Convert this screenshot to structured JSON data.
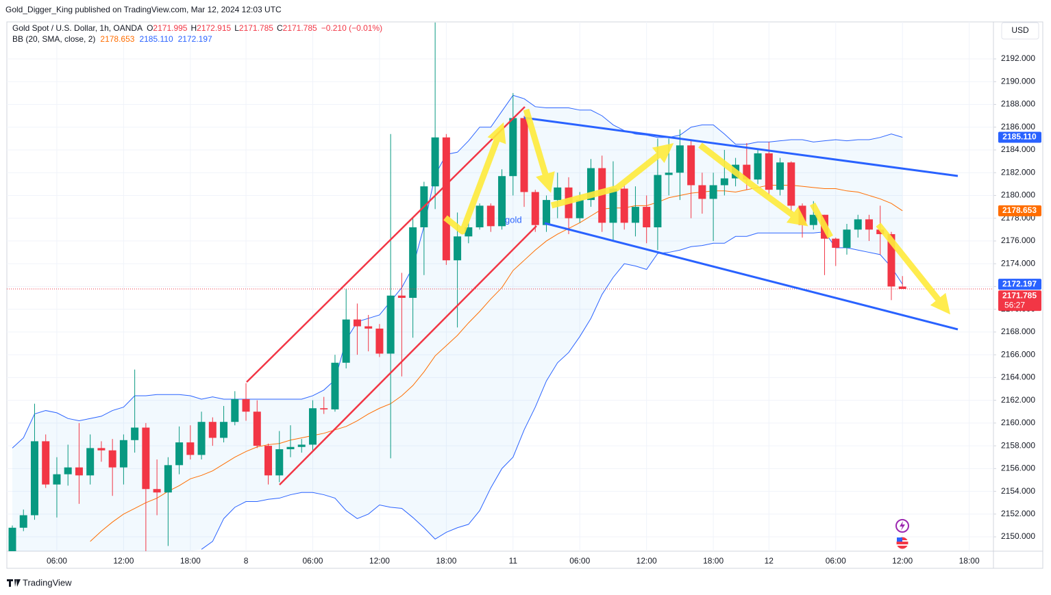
{
  "header": "Gold_Digger_King published on TradingView.com, Mar 12, 2024 12:03 UTC",
  "footer": "TradingView",
  "chart_data": {
    "type": "candlestick",
    "legend": {
      "symbol": "Gold Spot / U.S. Dollar, 1h, OANDA",
      "ohlc": [
        {
          "label": "O",
          "value": "2171.995"
        },
        {
          "label": "H",
          "value": "2172.915"
        },
        {
          "label": "L",
          "value": "2171.785"
        },
        {
          "label": "C",
          "value": "2171.785"
        }
      ],
      "change": "−0.210 (−0.01%)",
      "indicator": "BB (20, SMA, close, 2)",
      "indicator_values": [
        "2178.653",
        "2185.110",
        "2172.197"
      ]
    },
    "currency": "USD",
    "annotation": "gold",
    "up_color": "#089981",
    "down_color": "#f23645",
    "categories": [
      null,
      null,
      null,
      null,
      "06:00",
      null,
      null,
      null,
      null,
      null,
      "12:00",
      null,
      null,
      null,
      null,
      null,
      "18:00",
      null,
      null,
      null,
      null,
      "8",
      null,
      null,
      null,
      null,
      null,
      "06:00",
      null,
      null,
      null,
      null,
      null,
      "12:00",
      null,
      null,
      null,
      null,
      null,
      "18:00",
      null,
      null,
      null,
      null,
      null,
      "11",
      null,
      null,
      null,
      null,
      null,
      "06:00",
      null,
      null,
      null,
      null,
      null,
      "12:00",
      null,
      null,
      null,
      null,
      null,
      "18:00",
      null,
      null,
      null,
      null,
      "12",
      null,
      null,
      null,
      null,
      null,
      "06:00",
      null,
      null,
      null,
      null,
      null,
      "12:00",
      null,
      null,
      null,
      null,
      null,
      "18:00"
    ],
    "open": [
      2148.6,
      2150.8,
      2151.9,
      2158.4,
      2154.6,
      2155.5,
      2156.1,
      2155.4,
      2157.8,
      2157.6,
      2156.1,
      2158.5,
      2159.6,
      2154.2,
      2153.9,
      2156.3,
      2158.3,
      2157.2,
      2160.1,
      2158.7,
      2160.1,
      2162.1,
      2161.0,
      2158.0,
      2155.4,
      2157.7,
      2157.9,
      2158.1,
      2161.3,
      2161.2,
      2165.3,
      2169.1,
      2168.5,
      2168.3,
      2166.1,
      2171.2,
      2171.0,
      2177.2,
      2180.8,
      2185.1,
      2174.3,
      2176.4,
      2177.2,
      2179.1,
      2177.3,
      2181.7,
      2186.8,
      2180.3,
      2177.4,
      2179.6,
      2180.7,
      2178.0,
      2179.6,
      2182.4,
      2177.6,
      2180.6,
      2177.6,
      2179.0,
      2177.2,
      2181.8,
      2182.0,
      2184.4,
      2180.9,
      2179.7,
      2180.9,
      2181.5,
      2182.7,
      2181.4,
      2183.7,
      2180.5,
      2182.9,
      2179.1,
      2177.4,
      2178.3,
      2176.2,
      2175.4,
      2177.0,
      2177.9,
      2177.0,
      2176.6,
      2171.995,
      null,
      null,
      null,
      null,
      null,
      null
    ],
    "high": [
      2151.0,
      2152.4,
      2161.7,
      2159.0,
      2157.0,
      2158.1,
      2160.0,
      2159.0,
      2158.4,
      2158.6,
      2159.0,
      2164.7,
      2160.0,
      2156.8,
      2157.0,
      2159.7,
      2159.8,
      2161.0,
      2160.5,
      2161.5,
      2162.8,
      2163.5,
      2162.0,
      2158.2,
      2159.3,
      2159.8,
      2158.6,
      2162.0,
      2162.3,
      2166.0,
      2171.8,
      2170.5,
      2169.5,
      2168.7,
      2185.4,
      2173.2,
      2178.0,
      2181.2,
      2195.2,
      2185.4,
      2178.5,
      2177.6,
      2179.3,
      2179.3,
      2182.3,
      2189.0,
      2187.0,
      2180.5,
      2180.0,
      2182.0,
      2181.6,
      2180.3,
      2183.2,
      2183.5,
      2183.0,
      2181.0,
      2180.8,
      2180.0,
      2185.0,
      2185.0,
      2185.8,
      2184.8,
      2182.0,
      2182.0,
      2184.0,
      2183.3,
      2184.6,
      2184.0,
      2184.7,
      2183.3,
      2183.0,
      2179.3,
      2179.5,
      2178.3,
      2176.3,
      2177.5,
      2178.3,
      2178.3,
      2179.1,
      2176.8,
      2172.915,
      null,
      null,
      null,
      null,
      null,
      null
    ],
    "low": [
      2148.3,
      2150.5,
      2151.5,
      2154.3,
      2151.7,
      2154.5,
      2152.9,
      2154.6,
      2156.6,
      2153.6,
      2154.6,
      2157.4,
      2148.7,
      2151.9,
      2149.2,
      2155.5,
      2156.8,
      2156.8,
      2158.0,
      2158.3,
      2159.8,
      2160.2,
      2157.8,
      2154.6,
      2154.8,
      2157.0,
      2157.4,
      2157.6,
      2160.8,
      2161.0,
      2164.8,
      2166.0,
      2166.3,
      2165.8,
      2156.9,
      2164.1,
      2167.5,
      2173.0,
      2178.8,
      2173.9,
      2168.4,
      2175.8,
      2177.0,
      2176.8,
      2177.0,
      2180.0,
      2179.0,
      2176.8,
      2176.8,
      2178.0,
      2176.6,
      2177.6,
      2179.0,
      2176.8,
      2176.0,
      2177.0,
      2176.4,
      2175.8,
      2175.2,
      2180.0,
      2179.6,
      2178.0,
      2178.4,
      2176.0,
      2180.0,
      2180.8,
      2180.5,
      2181.0,
      2180.0,
      2180.0,
      2178.6,
      2176.3,
      2177.0,
      2173.0,
      2173.8,
      2174.8,
      2176.3,
      2176.0,
      2174.8,
      2170.8,
      2171.785,
      null,
      null,
      null,
      null,
      null,
      null
    ],
    "close": [
      2150.8,
      2151.9,
      2158.4,
      2154.6,
      2155.5,
      2156.1,
      2155.4,
      2157.8,
      2157.6,
      2156.1,
      2158.5,
      2159.6,
      2154.2,
      2153.9,
      2156.3,
      2158.3,
      2157.2,
      2160.1,
      2158.7,
      2160.1,
      2162.1,
      2161.0,
      2158.0,
      2155.4,
      2157.7,
      2157.9,
      2158.1,
      2161.3,
      2161.2,
      2165.3,
      2169.1,
      2168.5,
      2168.3,
      2166.1,
      2171.2,
      2171.0,
      2177.2,
      2180.8,
      2185.1,
      2174.3,
      2176.4,
      2177.2,
      2179.1,
      2177.3,
      2181.7,
      2186.8,
      2180.3,
      2177.4,
      2179.6,
      2180.7,
      2178.0,
      2179.6,
      2182.4,
      2177.6,
      2180.6,
      2177.6,
      2179.0,
      2177.2,
      2181.8,
      2182.0,
      2184.4,
      2180.9,
      2179.7,
      2180.9,
      2181.5,
      2182.7,
      2181.4,
      2183.7,
      2180.5,
      2182.9,
      2179.1,
      2177.4,
      2178.3,
      2176.2,
      2175.4,
      2177.0,
      2177.9,
      2177.0,
      2176.6,
      2172.0,
      2171.785,
      null,
      null,
      null,
      null,
      null,
      null
    ],
    "series": [
      {
        "name": "Upper",
        "color": "#2962ff",
        "values": [
          2157.8,
          2158.7,
          2160.8,
          2161.1,
          2160.9,
          2160.4,
          2160.2,
          2160.4,
          2160.6,
          2161.1,
          2161.4,
          2162.4,
          2162.4,
          2162.5,
          2162.5,
          2162.5,
          2162.4,
          2162.1,
          2162.3,
          2162.1,
          2162.1,
          2162.1,
          2162.1,
          2162.1,
          2162.1,
          2162.1,
          2162.1,
          2162.4,
          2162.9,
          2163.8,
          2167.3,
          2168.9,
          2169.2,
          2169.5,
          2170.7,
          2171.9,
          2173.7,
          2177.3,
          2181.8,
          2183.6,
          2183.8,
          2184.8,
          2186.0,
          2186.0,
          2187.4,
          2188.8,
          2188.5,
          2187.8,
          2187.7,
          2187.7,
          2187.7,
          2187.5,
          2187.5,
          2187.0,
          2186.2,
          2185.7,
          2185.4,
          2185.3,
          2185.1,
          2185.1,
          2185.3,
          2186.0,
          2186.2,
          2186.2,
          2185.4,
          2184.5,
          2184.5,
          2184.7,
          2184.7,
          2184.8,
          2184.9,
          2184.9,
          2184.7,
          2184.8,
          2184.9,
          2184.8,
          2184.9,
          2184.9,
          2185.1,
          2185.4,
          2185.11,
          null,
          null,
          null,
          null,
          null,
          null
        ]
      },
      {
        "name": "Basis",
        "color": "#ff6d00",
        "values": [
          null,
          null,
          null,
          null,
          null,
          null,
          null,
          2149.6,
          2150.5,
          2151.3,
          2152.0,
          2152.5,
          2153.0,
          2153.4,
          2154.0,
          2154.5,
          2155.1,
          2155.4,
          2155.8,
          2156.4,
          2157.0,
          2157.5,
          2157.9,
          2158.1,
          2158.2,
          2158.5,
          2158.7,
          2158.9,
          2159.1,
          2159.4,
          2159.7,
          2160.2,
          2160.8,
          2161.3,
          2161.7,
          2162.4,
          2163.3,
          2164.5,
          2165.9,
          2166.8,
          2167.7,
          2168.8,
          2169.8,
          2170.9,
          2171.9,
          2173.4,
          2174.3,
          2175.2,
          2176.0,
          2176.6,
          2177.1,
          2177.6,
          2178.2,
          2178.8,
          2178.9,
          2178.9,
          2179.1,
          2179.1,
          2179.4,
          2179.8,
          2180.0,
          2180.2,
          2180.3,
          2180.4,
          2180.4,
          2180.3,
          2180.5,
          2180.7,
          2180.9,
          2180.9,
          2180.9,
          2180.8,
          2180.7,
          2180.6,
          2180.6,
          2180.4,
          2180.3,
          2180.0,
          2179.7,
          2179.3,
          2178.653,
          null,
          null,
          null,
          null,
          null,
          null
        ]
      },
      {
        "name": "Lower",
        "color": "#2962ff",
        "values": [
          null,
          null,
          null,
          null,
          null,
          null,
          null,
          null,
          null,
          null,
          null,
          null,
          null,
          null,
          null,
          null,
          null,
          2148.9,
          2149.6,
          2151.6,
          2152.6,
          2153.1,
          2153.1,
          2153.3,
          2153.4,
          2153.7,
          2153.9,
          2153.9,
          2153.7,
          2153.4,
          2152.3,
          2151.6,
          2152.0,
          2152.8,
          2152.6,
          2152.5,
          2151.7,
          2150.8,
          2149.8,
          2150.4,
          2150.8,
          2151.1,
          2152.3,
          2154.3,
          2156.0,
          2157.0,
          2159.4,
          2161.4,
          2163.7,
          2165.3,
          2166.2,
          2167.6,
          2169.2,
          2171.3,
          2172.8,
          2174.0,
          2173.8,
          2173.5,
          2174.9,
          2175.0,
          2175.2,
          2175.5,
          2175.6,
          2175.8,
          2175.8,
          2176.4,
          2176.4,
          2176.7,
          2176.7,
          2176.7,
          2176.7,
          2176.7,
          2176.7,
          2176.8,
          2175.4,
          2175.4,
          2175.2,
          2175.0,
          2174.8,
          2173.7,
          2172.197,
          null,
          null,
          null,
          null,
          null,
          null
        ]
      }
    ],
    "price_tags": [
      {
        "value": 2185.11,
        "label": "2185.110",
        "color": "#2962ff"
      },
      {
        "value": 2178.653,
        "label": "2178.653",
        "color": "#ff6d00"
      },
      {
        "value": 2172.197,
        "label": "2172.197",
        "color": "#2962ff"
      },
      {
        "value": 2171.785,
        "label": "2171.785",
        "color": "#f23645",
        "countdown": "56:27"
      }
    ],
    "ylim": [
      2148.74,
      2195.25
    ],
    "yticks": [
      {
        "value": 2150,
        "label": "2150.000"
      },
      {
        "value": 2152,
        "label": "2152.000"
      },
      {
        "value": 2154,
        "label": "2154.000"
      },
      {
        "value": 2156,
        "label": "2156.000"
      },
      {
        "value": 2158,
        "label": "2158.000"
      },
      {
        "value": 2160,
        "label": "2160.000"
      },
      {
        "value": 2162,
        "label": "2162.000"
      },
      {
        "value": 2164,
        "label": "2164.000"
      },
      {
        "value": 2166,
        "label": "2166.000"
      },
      {
        "value": 2168,
        "label": "2168.000"
      },
      {
        "value": 2170,
        "label": "2170.000"
      },
      {
        "value": 2172,
        "label": "2172.000"
      },
      {
        "value": 2174,
        "label": "2174.000"
      },
      {
        "value": 2176,
        "label": "2176.000"
      },
      {
        "value": 2178,
        "label": "2178.000"
      },
      {
        "value": 2180,
        "label": "2180.000"
      },
      {
        "value": 2182,
        "label": "2182.000"
      },
      {
        "value": 2184,
        "label": "2184.000"
      },
      {
        "value": 2186,
        "label": "2186.000"
      },
      {
        "value": 2188,
        "label": "2188.000"
      },
      {
        "value": 2190,
        "label": "2190.000"
      },
      {
        "value": 2192,
        "label": "2192.000"
      }
    ],
    "grid": true
  }
}
